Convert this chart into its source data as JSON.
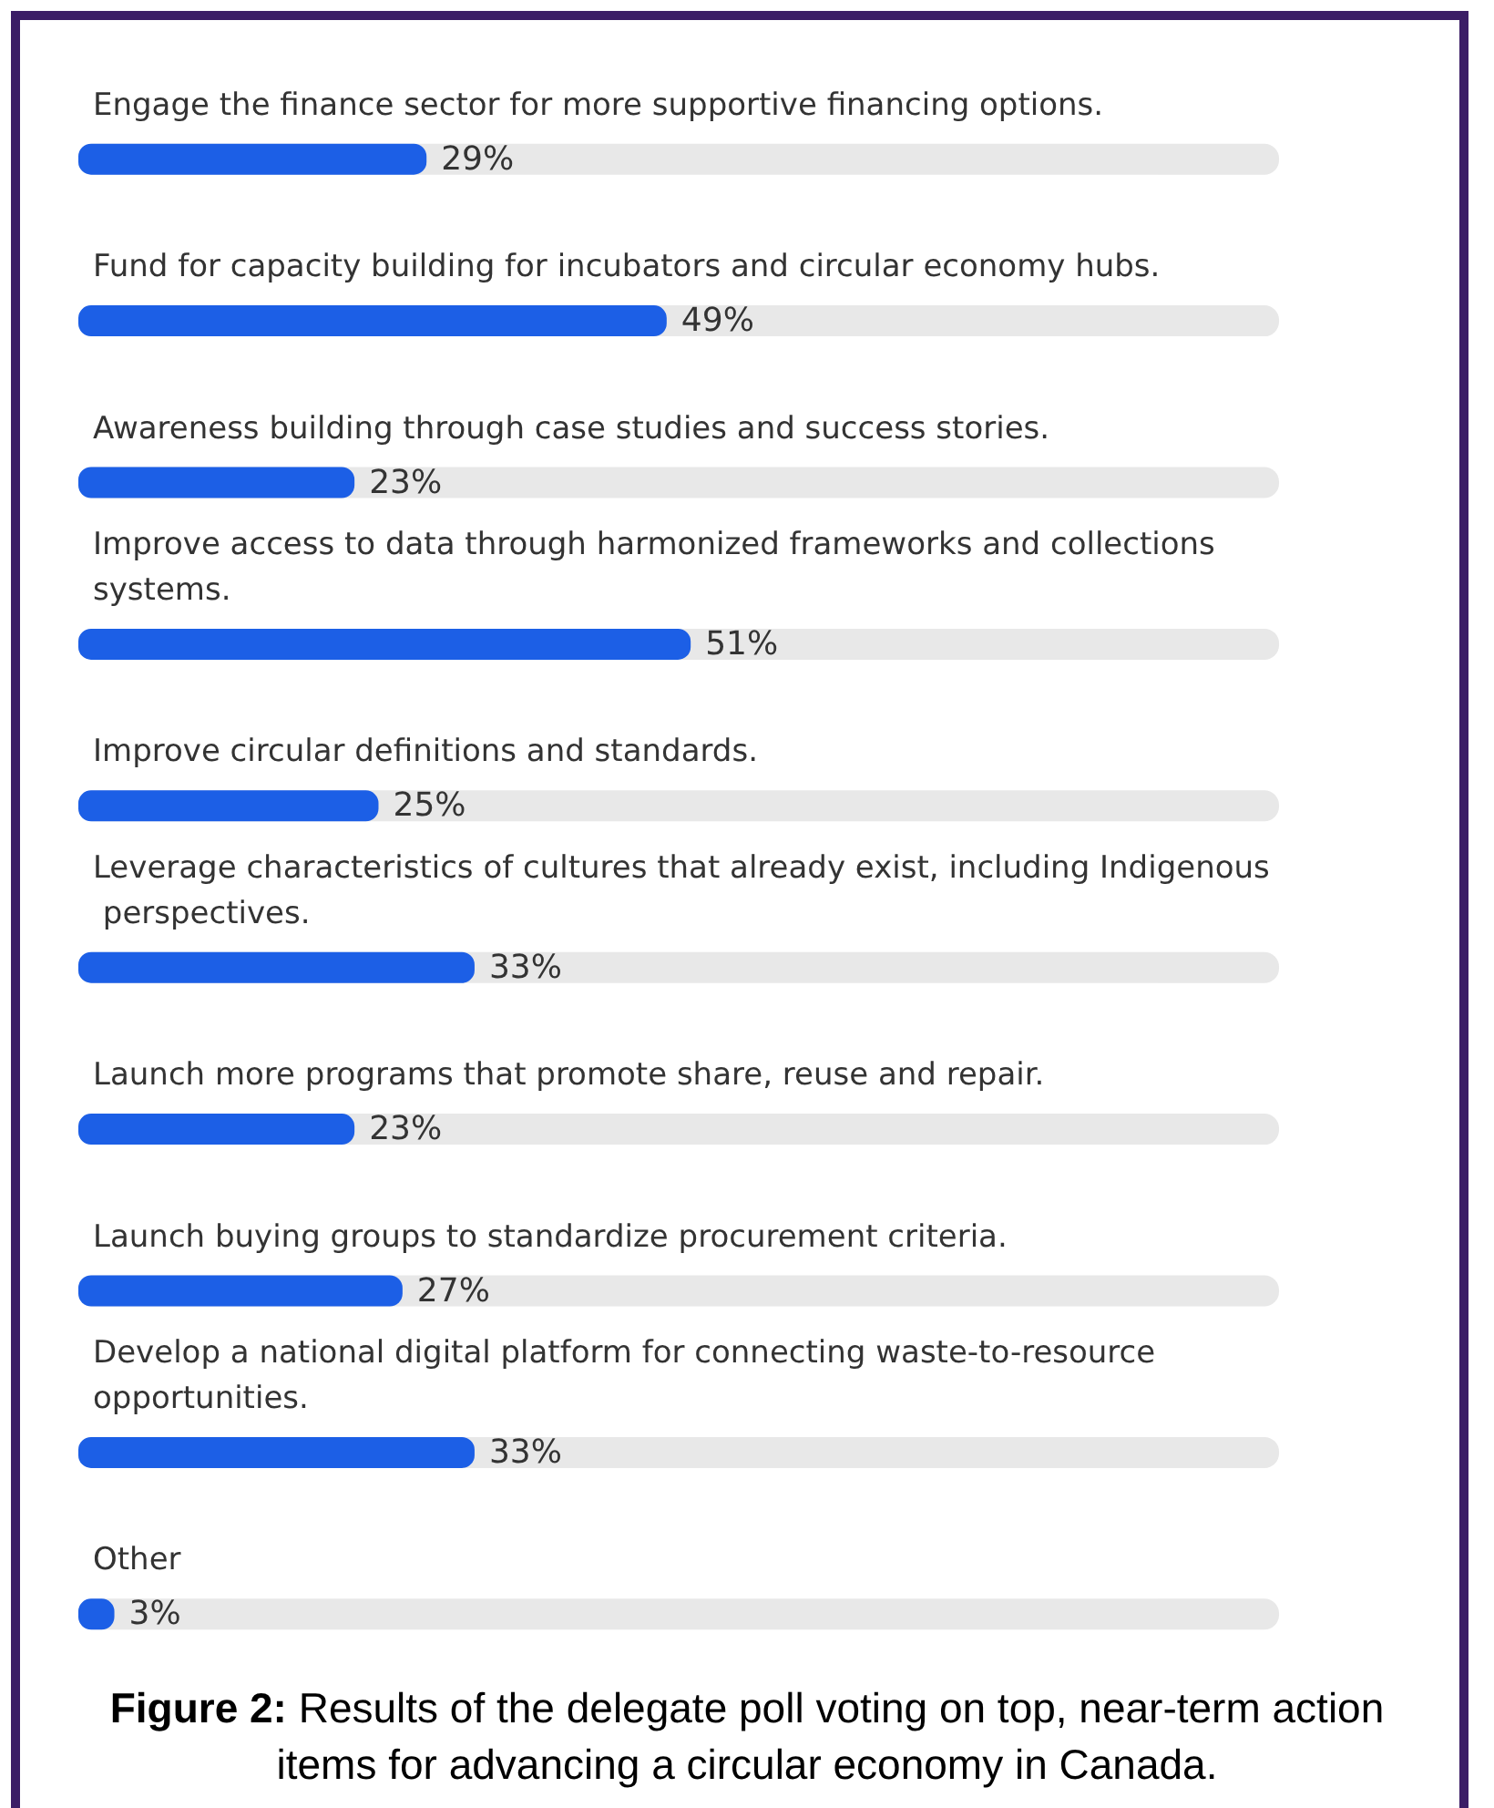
{
  "chart_data": {
    "type": "bar",
    "orientation": "horizontal",
    "categories": [
      "Engage the finance sector for more supportive financing options.",
      "Fund for capacity building for incubators and circular economy hubs.",
      "Awareness building through case studies and success stories.",
      "Improve access to data through harmonized frameworks and collections systems.",
      "Improve circular definitions and standards.",
      "Leverage characteristics of cultures that already exist, including Indigenous perspectives.",
      "Launch more programs that promote share, reuse and repair.",
      "Launch buying groups to standardize procurement criteria.",
      "Develop a national digital platform for connecting waste-to-resource opportunities.",
      "Other"
    ],
    "values": [
      29,
      49,
      23,
      51,
      25,
      33,
      23,
      27,
      33,
      3
    ],
    "value_labels": [
      "29%",
      "49%",
      "23%",
      "51%",
      "25%",
      "33%",
      "23%",
      "27%",
      "33%",
      "3%"
    ],
    "color": "#1c5fe6",
    "xlim": [
      0,
      100
    ],
    "tick_labels": "y",
    "annotations": [
      "Figure 2: Results of the delegate poll voting on top, near-term action items for advancing a circular economy in Canada."
    ]
  }
}
